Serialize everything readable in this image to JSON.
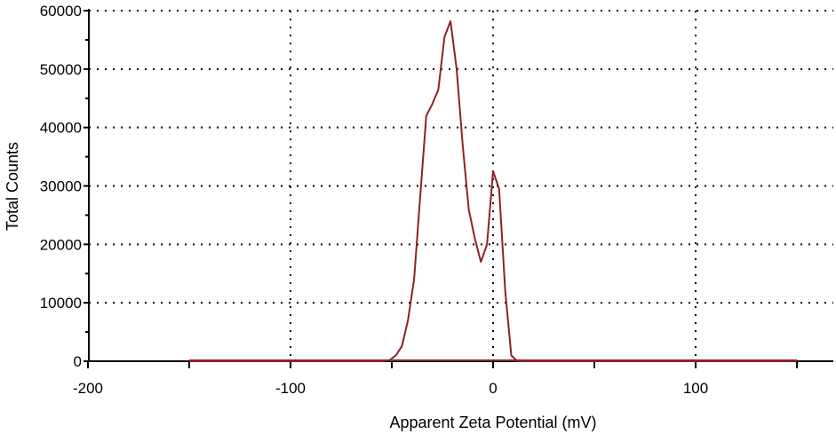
{
  "chart_data": {
    "type": "line",
    "xlabel": "Apparent Zeta Potential (mV)",
    "ylabel": "Total Counts",
    "xlim": [
      -200,
      170
    ],
    "ylim": [
      0,
      60000
    ],
    "grid": true,
    "x_ticks": [
      -200,
      -100,
      0,
      100
    ],
    "y_ticks": [
      0,
      10000,
      20000,
      30000,
      40000,
      50000,
      60000
    ],
    "series": [
      {
        "color": "#8b2323",
        "x": [
          -150,
          -100,
          -55,
          -51,
          -48,
          -45,
          -42,
          -39,
          -36,
          -33,
          -30,
          -27,
          -24,
          -21,
          -18,
          -15,
          -12,
          -9,
          -6,
          -3,
          0,
          3,
          6,
          9,
          12,
          15,
          18,
          50,
          100,
          150
        ],
        "y": [
          0,
          0,
          0,
          200,
          1000,
          2600,
          7000,
          14000,
          28000,
          42000,
          44000,
          46500,
          55500,
          58200,
          50000,
          37000,
          26000,
          21000,
          17000,
          20000,
          32500,
          29500,
          12000,
          1000,
          0,
          0,
          0,
          0,
          0,
          0
        ]
      }
    ]
  }
}
